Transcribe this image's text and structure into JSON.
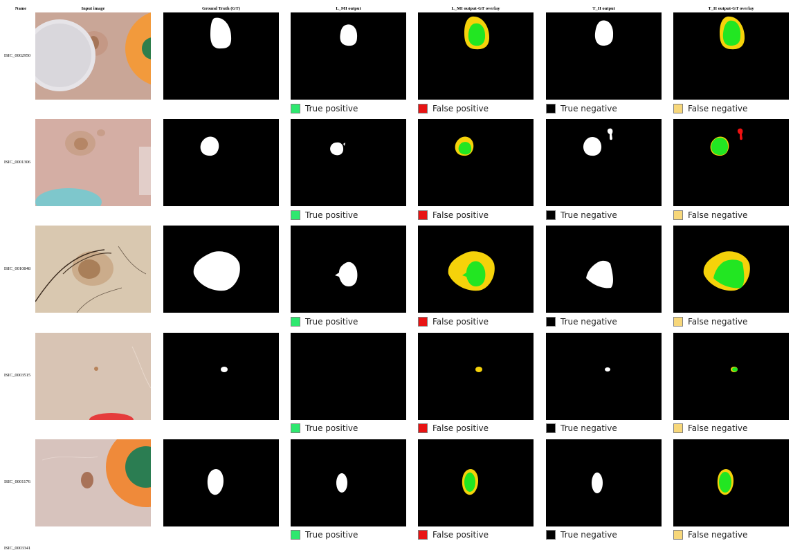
{
  "headers": {
    "name": "Name",
    "input": "Input image",
    "gt": "Ground Truth (GT)",
    "lmi": "L_MI output",
    "lmi_overlay": "L_MI output-GT overlay",
    "tii": "T_II output",
    "tii_overlay": "T_II output-GT overlay"
  },
  "rows": [
    {
      "name": "ISIC_0002950"
    },
    {
      "name": "ISIC_0001306"
    },
    {
      "name": "ISIC_0010848"
    },
    {
      "name": "ISIC_0003515"
    },
    {
      "name": "ISIC_0001176"
    },
    {
      "name": "ISIC_0003341"
    }
  ],
  "legend": {
    "true_positive": "True positive",
    "false_positive": "False positive",
    "true_negative": "True negative",
    "false_negative": "False negative"
  },
  "colors": {
    "true_positive": "#2ee86f",
    "false_positive": "#e81414",
    "true_negative": "#000000",
    "false_negative": "#f7d77a",
    "overlay_tp": "#22e622",
    "overlay_fn": "#f5d20a",
    "overlay_fp": "#ee1111",
    "mask_fg": "#ffffff",
    "mask_bg": "#000000"
  }
}
